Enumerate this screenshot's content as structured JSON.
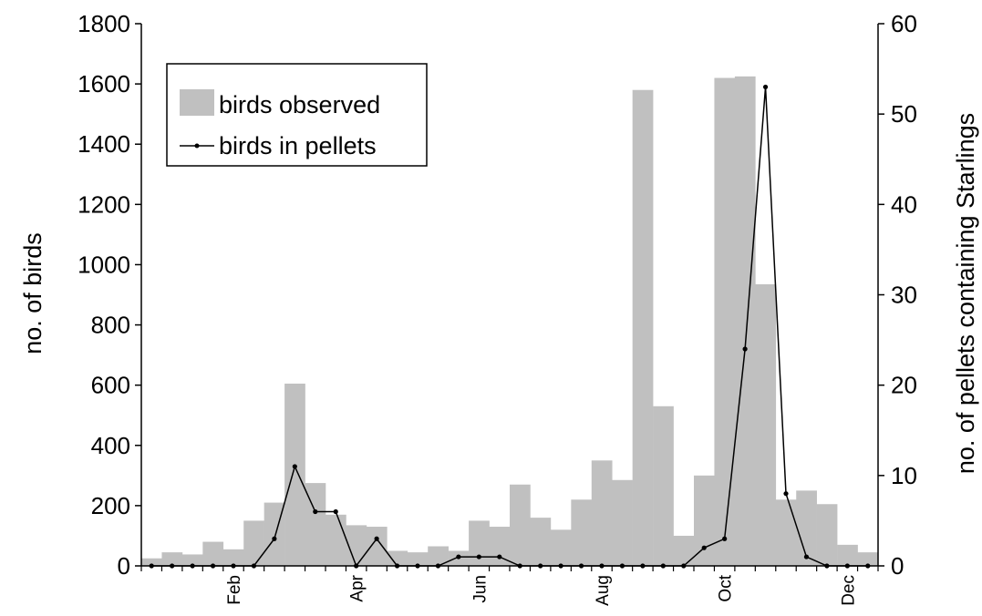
{
  "colors": {
    "bar": "#c0c0c0",
    "line": "#000000",
    "axis": "#000000"
  },
  "chart_data": {
    "type": "bar",
    "ylabel_left": "no. of birds",
    "ylabel_right": "no. of pellets containing Starlings",
    "ylim_left": [
      0,
      1800
    ],
    "ylim_right": [
      0,
      60
    ],
    "yticks_left": [
      "0",
      "200",
      "400",
      "600",
      "800",
      "1000",
      "1200",
      "1400",
      "1600",
      "1800"
    ],
    "yticks_right": [
      "0",
      "10",
      "20",
      "30",
      "40",
      "50",
      "60"
    ],
    "month_labels": [
      "Feb",
      "Apr",
      "Jun",
      "Aug",
      "Oct",
      "Dec"
    ],
    "month_label_bins": [
      4,
      10,
      16,
      22,
      28,
      34
    ],
    "n_bins": 36,
    "grid": false,
    "legend_position": "top-left",
    "series": [
      {
        "name": "birds observed",
        "type": "bar",
        "axis": "left",
        "values": [
          25,
          45,
          38,
          80,
          55,
          150,
          210,
          605,
          275,
          170,
          135,
          130,
          50,
          45,
          65,
          50,
          150,
          130,
          270,
          160,
          120,
          220,
          350,
          285,
          1580,
          530,
          100,
          300,
          1620,
          1625,
          935,
          220,
          250,
          205,
          70,
          45
        ]
      },
      {
        "name": "birds in pellets",
        "type": "line",
        "axis": "right",
        "values": [
          0,
          0,
          0,
          0,
          0,
          0,
          3,
          11,
          6,
          6,
          0,
          3,
          0,
          0,
          0,
          1,
          1,
          1,
          0,
          0,
          0,
          0,
          0,
          0,
          0,
          0,
          0,
          2,
          3,
          24,
          53,
          8,
          1,
          0,
          0,
          0
        ]
      }
    ]
  }
}
